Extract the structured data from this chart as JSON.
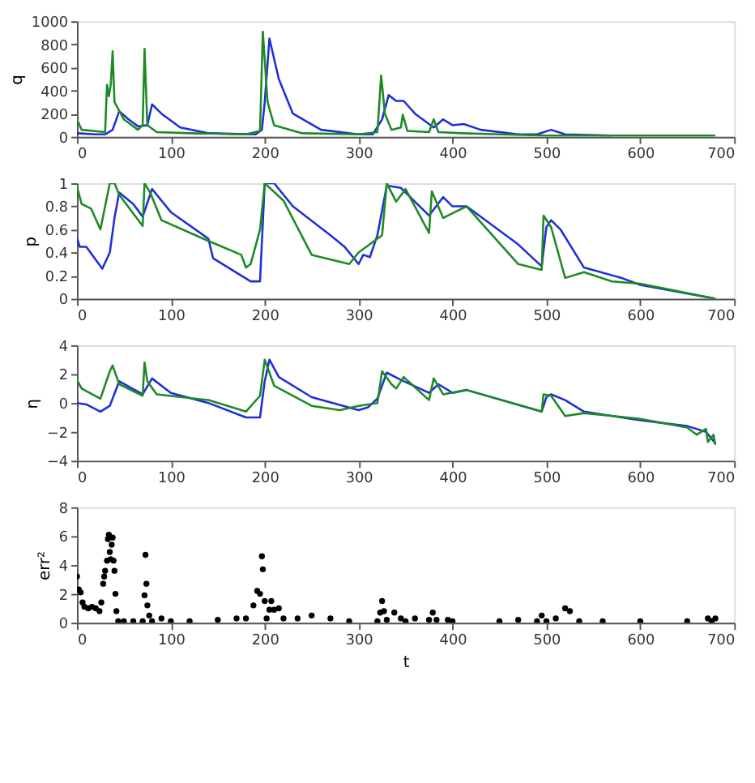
{
  "chart_data": [
    {
      "type": "line",
      "ylabel": "q",
      "xlim": [
        0,
        700
      ],
      "xticks": [
        0,
        100,
        200,
        300,
        400,
        500,
        600,
        700
      ],
      "ylim": [
        0,
        1000
      ],
      "yticks": [
        0,
        200,
        400,
        600,
        800,
        1000
      ],
      "grid": false,
      "line_style": "solid",
      "series": [
        {
          "color": "#1f2fd8",
          "x": [
            0,
            20,
            30,
            38,
            45,
            55,
            65,
            75,
            80,
            90,
            110,
            140,
            190,
            197,
            200,
            205,
            215,
            230,
            260,
            300,
            315,
            325,
            332,
            340,
            348,
            360,
            380,
            390,
            400,
            412,
            430,
            470,
            490,
            505,
            520,
            570
          ],
          "values": [
            30,
            20,
            20,
            60,
            220,
            150,
            90,
            100,
            280,
            200,
            80,
            30,
            20,
            60,
            300,
            850,
            500,
            200,
            60,
            20,
            20,
            150,
            360,
            310,
            310,
            200,
            80,
            150,
            100,
            110,
            60,
            20,
            20,
            60,
            20,
            10
          ]
        },
        {
          "color": "#1e8a24",
          "x": [
            0,
            5,
            30,
            32,
            34,
            36,
            38,
            40,
            50,
            65,
            70,
            72,
            75,
            85,
            120,
            180,
            195,
            198,
            203,
            210,
            240,
            300,
            320,
            324,
            328,
            335,
            345,
            347,
            352,
            375,
            380,
            385,
            410,
            450,
            500,
            600,
            680
          ],
          "values": [
            150,
            60,
            40,
            450,
            350,
            450,
            740,
            300,
            150,
            60,
            100,
            760,
            100,
            40,
            30,
            20,
            50,
            910,
            300,
            100,
            30,
            20,
            40,
            530,
            200,
            60,
            80,
            190,
            50,
            40,
            150,
            40,
            30,
            20,
            10,
            10,
            10
          ]
        }
      ]
    },
    {
      "type": "line",
      "ylabel": "p",
      "xlim": [
        0,
        700
      ],
      "xticks": [
        0,
        100,
        200,
        300,
        400,
        500,
        600,
        700
      ],
      "ylim": [
        0,
        1
      ],
      "yticks": [
        0,
        0.2,
        0.4,
        0.6,
        0.8,
        1
      ],
      "grid": false,
      "line_style": "solid",
      "series": [
        {
          "color": "#1f2fd8",
          "x": [
            0,
            3,
            10,
            27,
            35,
            40,
            45,
            60,
            70,
            80,
            100,
            140,
            145,
            185,
            195,
            200,
            210,
            230,
            270,
            285,
            300,
            305,
            312,
            320,
            330,
            345,
            375,
            390,
            400,
            415,
            470,
            495,
            500,
            505,
            515,
            540,
            580,
            600,
            680
          ],
          "values": [
            0.53,
            0.45,
            0.45,
            0.26,
            0.4,
            0.7,
            0.92,
            0.82,
            0.71,
            0.95,
            0.75,
            0.52,
            0.35,
            0.15,
            0.15,
            1.0,
            1.0,
            0.8,
            0.55,
            0.45,
            0.3,
            0.38,
            0.36,
            0.55,
            0.98,
            0.96,
            0.72,
            0.88,
            0.8,
            0.8,
            0.47,
            0.28,
            0.62,
            0.68,
            0.6,
            0.27,
            0.18,
            0.12,
            0.0
          ]
        },
        {
          "color": "#1e8a24",
          "x": [
            0,
            5,
            15,
            25,
            35,
            40,
            45,
            70,
            72,
            78,
            90,
            140,
            175,
            180,
            185,
            195,
            200,
            220,
            250,
            290,
            300,
            325,
            330,
            340,
            350,
            375,
            378,
            390,
            415,
            470,
            495,
            497,
            505,
            520,
            540,
            570,
            600,
            680
          ],
          "values": [
            0.97,
            0.82,
            0.78,
            0.6,
            1.0,
            1.0,
            0.9,
            0.63,
            1.0,
            0.92,
            0.68,
            0.5,
            0.38,
            0.27,
            0.3,
            0.6,
            1.0,
            0.85,
            0.38,
            0.3,
            0.4,
            0.55,
            1.0,
            0.84,
            0.95,
            0.57,
            0.93,
            0.7,
            0.8,
            0.3,
            0.25,
            0.72,
            0.62,
            0.18,
            0.23,
            0.15,
            0.13,
            0.0
          ]
        }
      ]
    },
    {
      "type": "line",
      "ylabel": "η",
      "xlim": [
        0,
        700
      ],
      "xticks": [
        0,
        100,
        200,
        300,
        400,
        500,
        600,
        700
      ],
      "ylim": [
        -4,
        4
      ],
      "yticks": [
        -4,
        -2,
        0,
        2,
        4
      ],
      "grid": false,
      "line_style": "solid",
      "series": [
        {
          "color": "#1f2fd8",
          "x": [
            0,
            10,
            25,
            35,
            45,
            70,
            80,
            100,
            140,
            180,
            195,
            200,
            205,
            215,
            250,
            300,
            310,
            320,
            330,
            345,
            375,
            385,
            400,
            415,
            495,
            500,
            505,
            520,
            540,
            600,
            650,
            670,
            680
          ],
          "values": [
            0.0,
            -0.1,
            -0.6,
            -0.2,
            1.5,
            0.6,
            1.7,
            0.7,
            0.0,
            -1.0,
            -1.0,
            1.5,
            3.0,
            1.8,
            0.4,
            -0.5,
            -0.3,
            0.3,
            2.1,
            1.6,
            0.7,
            1.3,
            0.7,
            0.9,
            -0.6,
            0.4,
            0.6,
            0.2,
            -0.6,
            -1.2,
            -1.6,
            -2.0,
            -2.8
          ]
        },
        {
          "color": "#1e8a24",
          "x": [
            0,
            5,
            25,
            35,
            38,
            45,
            70,
            72,
            75,
            85,
            140,
            180,
            195,
            200,
            210,
            250,
            280,
            300,
            320,
            325,
            335,
            340,
            348,
            375,
            380,
            390,
            415,
            495,
            497,
            505,
            520,
            540,
            600,
            650,
            660,
            670,
            672,
            678,
            680
          ],
          "values": [
            1.6,
            1.0,
            0.3,
            2.2,
            2.6,
            1.3,
            0.5,
            2.8,
            1.5,
            0.6,
            0.2,
            -0.6,
            0.5,
            3.0,
            1.2,
            -0.2,
            -0.5,
            -0.2,
            0.0,
            2.2,
            1.3,
            1.0,
            1.8,
            0.2,
            1.7,
            0.6,
            0.9,
            -0.6,
            0.6,
            0.5,
            -0.9,
            -0.7,
            -1.1,
            -1.7,
            -2.2,
            -1.8,
            -2.7,
            -2.2,
            -2.9
          ]
        }
      ]
    },
    {
      "type": "scatter",
      "ylabel": "err²",
      "xlabel": "t",
      "xlim": [
        0,
        700
      ],
      "xticks": [
        0,
        100,
        200,
        300,
        400,
        500,
        600,
        700
      ],
      "ylim": [
        0,
        8
      ],
      "yticks": [
        0,
        2,
        4,
        6,
        8
      ],
      "grid": false,
      "marker": "circle",
      "series": [
        {
          "color": "#000000",
          "x": [
            0,
            2,
            4,
            6,
            8,
            12,
            16,
            20,
            24,
            26,
            28,
            29,
            30,
            32,
            33,
            34,
            35,
            36,
            37,
            38,
            39,
            40,
            41,
            42,
            44,
            50,
            60,
            70,
            72,
            73,
            74,
            75,
            77,
            80,
            90,
            100,
            120,
            150,
            170,
            180,
            188,
            192,
            195,
            197,
            198,
            200,
            202,
            205,
            207,
            210,
            215,
            220,
            235,
            250,
            270,
            290,
            320,
            323,
            325,
            327,
            330,
            338,
            345,
            350,
            360,
            375,
            379,
            383,
            395,
            400,
            450,
            470,
            490,
            495,
            500,
            510,
            520,
            525,
            535,
            560,
            600,
            650,
            672,
            676,
            680
          ],
          "values": [
            3.2,
            2.3,
            2.1,
            1.4,
            1.1,
            1.0,
            1.1,
            1.0,
            0.8,
            1.4,
            2.7,
            3.2,
            3.6,
            4.3,
            5.8,
            6.1,
            4.9,
            4.4,
            5.4,
            5.9,
            4.3,
            3.6,
            2.0,
            0.8,
            0.1,
            0.1,
            0.1,
            0.1,
            1.9,
            4.7,
            2.7,
            1.2,
            0.5,
            0.1,
            0.3,
            0.1,
            0.1,
            0.2,
            0.3,
            0.3,
            1.2,
            2.2,
            2.0,
            4.6,
            3.7,
            1.5,
            0.3,
            0.9,
            1.5,
            0.9,
            1.0,
            0.3,
            0.3,
            0.5,
            0.3,
            0.1,
            0.1,
            0.7,
            1.5,
            0.8,
            0.2,
            0.7,
            0.3,
            0.1,
            0.3,
            0.2,
            0.7,
            0.2,
            0.2,
            0.1,
            0.1,
            0.2,
            0.1,
            0.5,
            0.1,
            0.3,
            1.0,
            0.8,
            0.1,
            0.1,
            0.1,
            0.1,
            0.3,
            0.1,
            0.3
          ]
        }
      ]
    }
  ]
}
